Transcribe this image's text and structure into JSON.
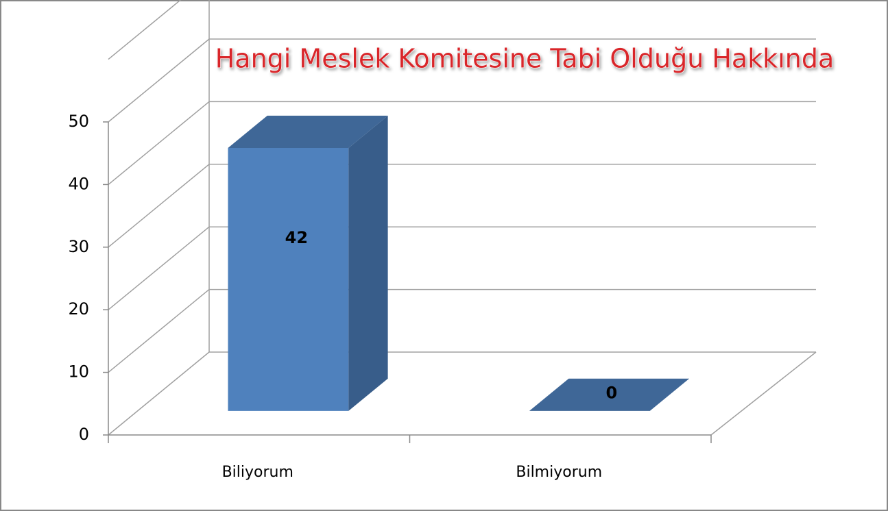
{
  "chart_data": {
    "type": "bar3d",
    "title": "Hangi Meslek Komitesine Tabi Olduğu Hakkında",
    "categories": [
      "Biliyorum",
      "Bilmiyorum"
    ],
    "values": [
      42,
      0
    ],
    "color": "#4f81bd",
    "ylim": [
      0,
      50
    ],
    "yticks": [
      0,
      10,
      20,
      30,
      40,
      50
    ],
    "grid": true
  }
}
